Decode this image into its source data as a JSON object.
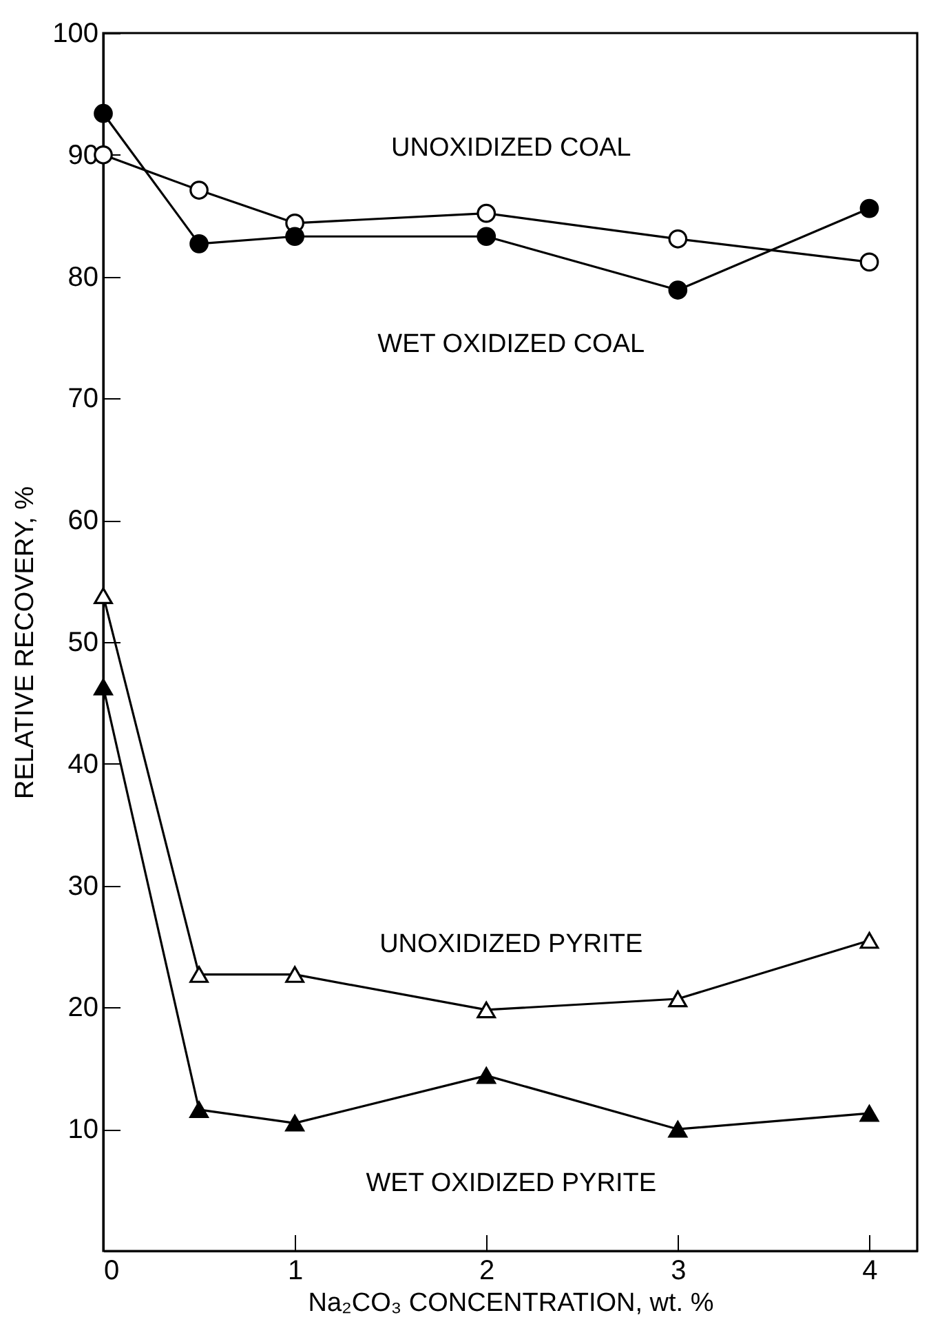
{
  "chart_data": {
    "type": "line",
    "xlabel": "Na₂CO₃ CONCENTRATION, wt. %",
    "ylabel": "RELATIVE RECOVERY, %",
    "xlim": [
      0,
      4.25
    ],
    "ylim": [
      0,
      100
    ],
    "xticks": [
      0,
      1,
      2,
      3,
      4
    ],
    "yticks": [
      10,
      20,
      30,
      40,
      50,
      60,
      70,
      80,
      90,
      100
    ],
    "grid": false,
    "legend": false,
    "series": [
      {
        "x": [
          0,
          0.5,
          1,
          2,
          3,
          4
        ],
        "values": [
          90,
          87.1,
          84.4,
          85.2,
          83.1,
          81.2
        ],
        "color": "#ffffff",
        "marker": "circle"
      },
      {
        "x": [
          0,
          0.5,
          1,
          2,
          3,
          4
        ],
        "values": [
          93.4,
          82.7,
          83.3,
          83.3,
          78.9,
          85.6
        ],
        "color": "#000000",
        "marker": "circle"
      },
      {
        "x": [
          0,
          0.5,
          1,
          2,
          3,
          4
        ],
        "values": [
          53.8,
          22.7,
          22.7,
          19.8,
          20.7,
          25.5
        ],
        "color": "#ffffff",
        "marker": "triangle"
      },
      {
        "x": [
          0,
          0.5,
          1,
          2,
          3,
          4
        ],
        "values": [
          46.3,
          11.6,
          10.5,
          14.4,
          10,
          11.3
        ],
        "color": "#000000",
        "marker": "triangle"
      }
    ],
    "annotations": [
      "UNOXIDIZED COAL",
      "WET OXIDIZED COAL",
      "UNOXIDIZED PYRITE",
      "WET OXIDIZED PYRITE"
    ]
  }
}
